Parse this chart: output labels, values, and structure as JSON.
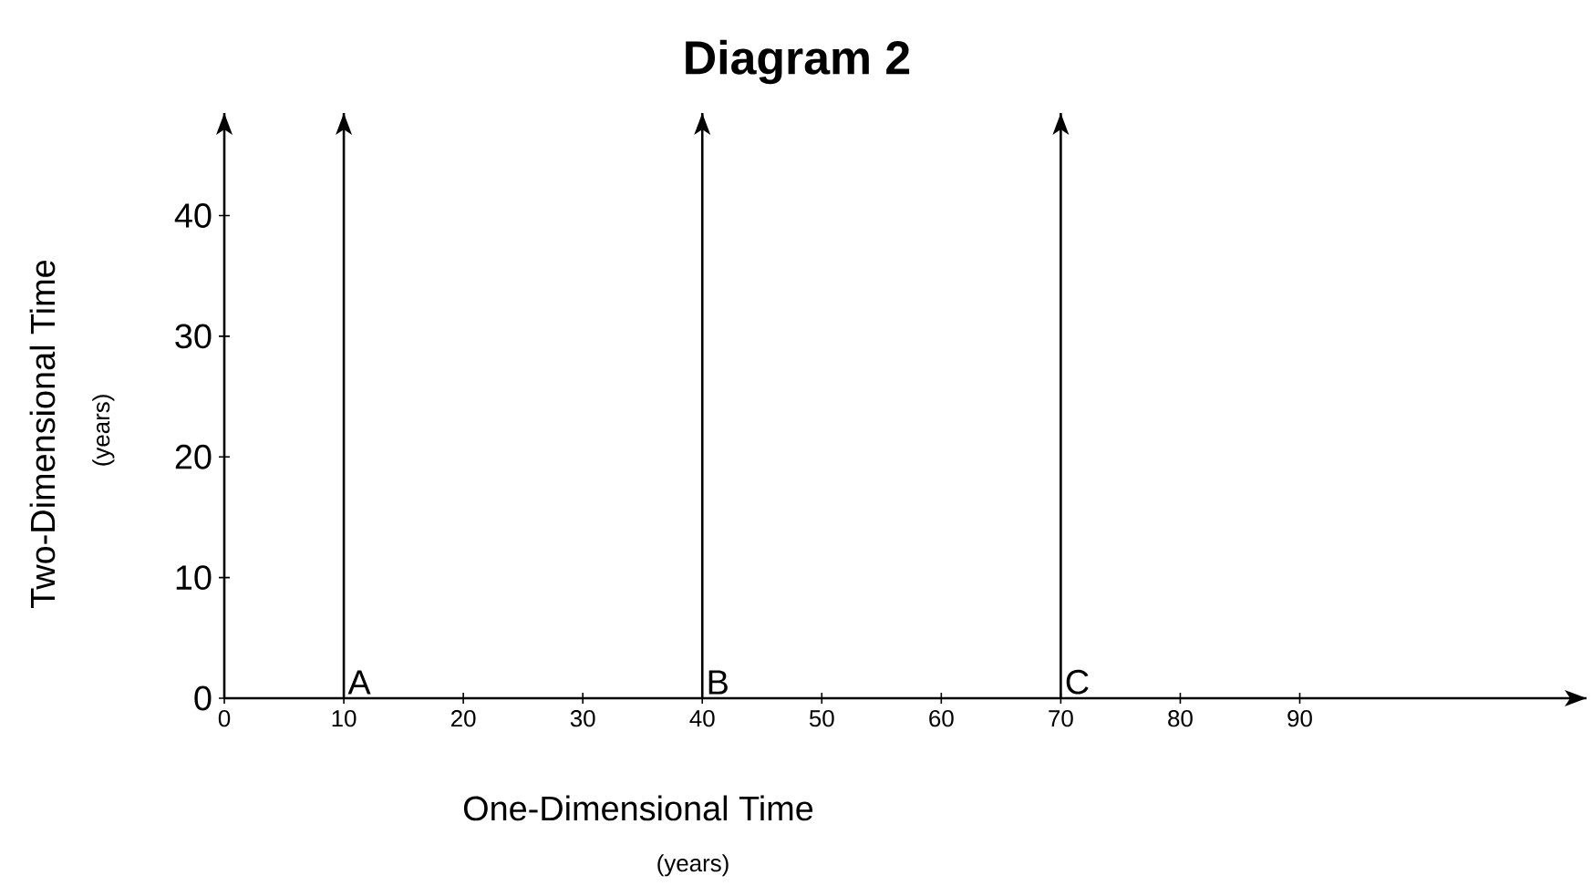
{
  "chart_data": {
    "type": "line",
    "title": "Diagram 2",
    "xlabel": "One-Dimensional Time",
    "ylabel": "Two-Dimensional Time",
    "annotations": [
      "(years)",
      "(years)"
    ],
    "xlim": [
      0,
      114
    ],
    "ylim": [
      0,
      48.5
    ],
    "xticks": [
      0,
      10,
      20,
      30,
      40,
      50,
      60,
      70,
      80,
      90
    ],
    "yticks": [
      0,
      10,
      20,
      30,
      40
    ],
    "ref_lines": [
      {
        "axis": "x",
        "value": 10,
        "label": "A",
        "color": "#000000"
      },
      {
        "axis": "x",
        "value": 40,
        "label": "B",
        "color": "#000000"
      },
      {
        "axis": "x",
        "value": 70,
        "label": "C",
        "color": "#000000"
      }
    ]
  }
}
